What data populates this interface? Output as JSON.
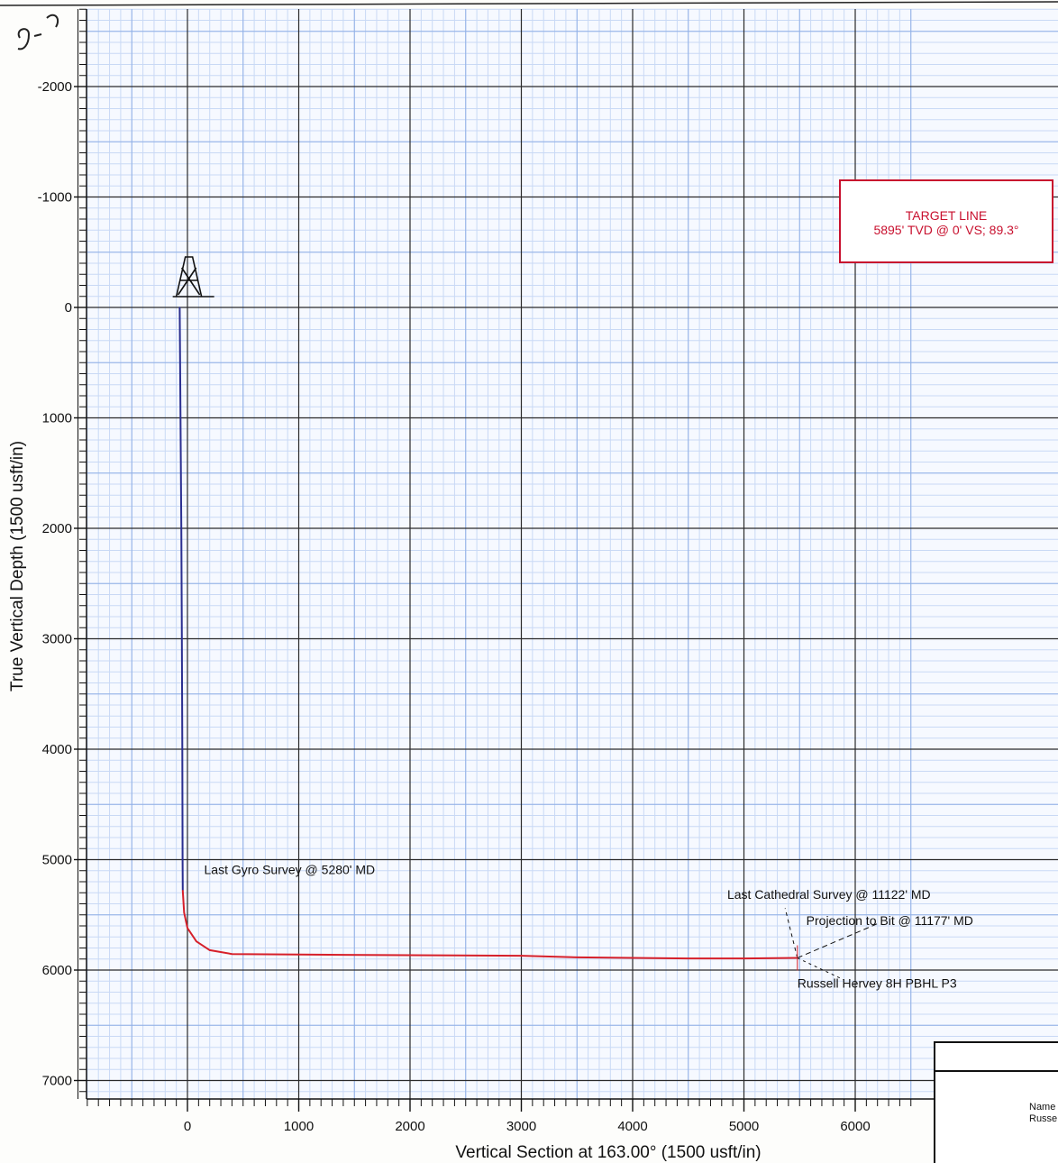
{
  "chart_data": {
    "type": "line",
    "title": "",
    "xlabel": "Vertical Section at 163.00° (1500 usft/in)",
    "ylabel": "True Vertical Depth (1500 usft/in)",
    "xlim": [
      -1000,
      6500
    ],
    "ylim": [
      7400,
      -2700
    ],
    "x_ticks": [
      0,
      1000,
      2000,
      3000,
      4000,
      5000,
      6000
    ],
    "y_ticks": [
      -2000,
      -1000,
      0,
      1000,
      2000,
      3000,
      4000,
      5000,
      6000,
      7000
    ],
    "grid": true,
    "series": [
      {
        "segment": "gyro",
        "color": "#2b2f8f",
        "points": [
          [
            -70,
            0
          ],
          [
            -62,
            1000
          ],
          [
            -55,
            2000
          ],
          [
            -50,
            3000
          ],
          [
            -46,
            4000
          ],
          [
            -44,
            5000
          ],
          [
            -42,
            5280
          ]
        ]
      },
      {
        "segment": "wellbore",
        "color": "#d6202a",
        "points": [
          [
            -42,
            5280
          ],
          [
            -30,
            5480
          ],
          [
            0,
            5620
          ],
          [
            80,
            5740
          ],
          [
            200,
            5820
          ],
          [
            400,
            5855
          ],
          [
            1000,
            5860
          ],
          [
            2000,
            5865
          ],
          [
            3000,
            5870
          ],
          [
            3500,
            5885
          ],
          [
            4500,
            5895
          ],
          [
            5000,
            5895
          ],
          [
            5480,
            5890
          ]
        ]
      }
    ],
    "annotations": [
      {
        "text": "Last Gyro Survey @ 5280' MD",
        "x": 150,
        "y": 5130
      },
      {
        "text": "Last Cathedral Survey @ 11122' MD",
        "x": 4850,
        "y": 5355
      },
      {
        "text": "Projection to Bit @ 11177' MD",
        "x": 5560,
        "y": 5590
      },
      {
        "text": "Russell Hervey 8H PBHL P3",
        "x": 5480,
        "y": 6160
      }
    ],
    "target_box": {
      "line1": "TARGET LINE",
      "line2": "5895' TVD @ 0' VS; 89.3°",
      "color": "#c8102e"
    },
    "rig_symbol": {
      "x": -100,
      "y": 0
    }
  },
  "handwritten_note": "9-0",
  "title_block": {
    "name_label": "Name",
    "name_value": "Russe"
  }
}
